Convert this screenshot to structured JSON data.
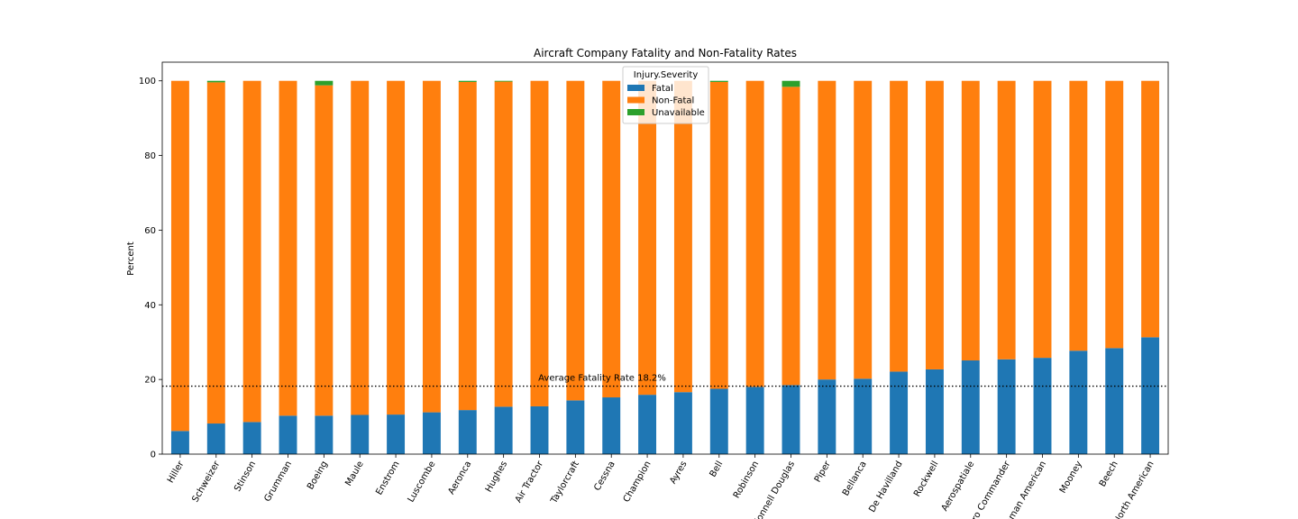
{
  "chart_data": {
    "type": "bar",
    "stacked": true,
    "title": "Aircraft Company Fatality and Non-Fatality Rates",
    "xlabel": "",
    "ylabel": "Percent",
    "ylim": [
      0,
      105
    ],
    "yticks": [
      0,
      20,
      40,
      60,
      80,
      100
    ],
    "grid": false,
    "legend": {
      "title": "Injury.Severity",
      "placement": "upper-center"
    },
    "categories": [
      "Hiller",
      "Schweizer",
      "Stinson",
      "Grumman",
      "Boeing",
      "Maule",
      "Enstrom",
      "Luscombe",
      "Aeronca",
      "Hughes",
      "Air Tractor",
      "Taylorcraft",
      "Cessna",
      "Champion",
      "Ayres",
      "Bell",
      "Robinson",
      "Mcdonnell Douglas",
      "Piper",
      "Bellanca",
      "De Havilland",
      "Rockwell",
      "Aerospatiale",
      "Aero Commander",
      "Grumman American",
      "Mooney",
      "Beech",
      "North American"
    ],
    "series": [
      {
        "name": "Fatal",
        "color": "#1f77b4",
        "values": [
          6.2,
          8.2,
          8.6,
          10.3,
          10.3,
          10.5,
          10.6,
          11.2,
          11.8,
          12.7,
          12.8,
          14.4,
          15.2,
          15.9,
          16.6,
          17.5,
          18.0,
          18.5,
          20.0,
          20.2,
          22.1,
          22.7,
          25.1,
          25.4,
          25.8,
          27.7,
          28.4,
          31.3
        ]
      },
      {
        "name": "Non-Fatal",
        "color": "#ff7f0e",
        "values": [
          93.8,
          91.4,
          91.4,
          89.7,
          88.5,
          89.5,
          89.4,
          88.8,
          87.9,
          87.1,
          87.2,
          85.6,
          84.8,
          84.1,
          83.4,
          82.2,
          82.0,
          79.9,
          80.0,
          79.8,
          77.9,
          77.3,
          74.9,
          74.6,
          74.2,
          72.3,
          71.6,
          68.7
        ]
      },
      {
        "name": "Unavailable",
        "color": "#2ca02c",
        "values": [
          0,
          0.4,
          0,
          0,
          1.2,
          0,
          0,
          0,
          0.3,
          0.2,
          0,
          0,
          0,
          0,
          0,
          0.3,
          0,
          1.6,
          0,
          0,
          0,
          0,
          0,
          0,
          0,
          0,
          0,
          0
        ]
      }
    ],
    "annotations": [
      {
        "text": "Average Fatality Rate 18.2%",
        "y": 18.2,
        "style": "dotted"
      }
    ]
  }
}
